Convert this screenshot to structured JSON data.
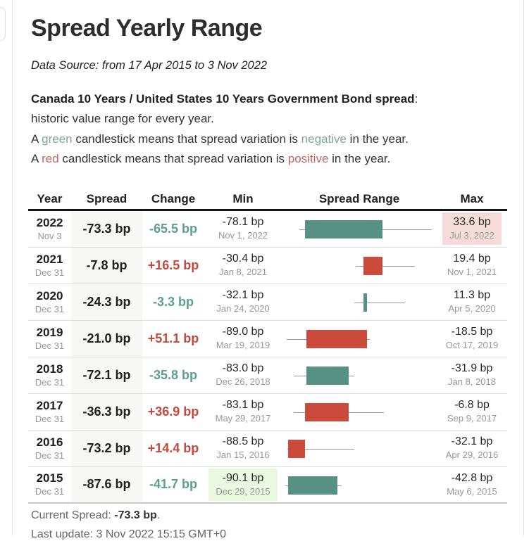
{
  "page": {
    "title": "Spread Yearly Range",
    "data_source": "Data Source: from 17 Apr 2015 to 3 Nov 2022"
  },
  "description": {
    "title_bold": "Canada 10 Years / United States 10 Years Government Bond spread",
    "title_colon": ":",
    "subtitle": "historic value range for every year.",
    "negative": [
      "A ",
      "green",
      " candlestick means that spread variation is ",
      "negative",
      " in the year."
    ],
    "positive": [
      "A ",
      "red",
      " candlestick means that spread variation is ",
      "positive",
      " in the year."
    ]
  },
  "table": {
    "headers": [
      "Year",
      "Spread",
      "Change",
      "Min",
      "Spread Range",
      "Max"
    ],
    "rows": [
      {
        "year": "2022",
        "date": "Nov 3",
        "spread": "-73.3 bp",
        "change": "-65.5 bp",
        "change_color": "green",
        "min_value": "-78.1 bp",
        "min_date": "Nov 1, 2022",
        "min_highlight": false,
        "max_value": "33.6 bp",
        "max_date": "Jul 3, 2022",
        "max_highlight": true,
        "candle": {
          "low": -78.1,
          "high": 33.6,
          "open": -7.8,
          "close": -73.3,
          "color": "green"
        }
      },
      {
        "year": "2021",
        "date": "Dec 31",
        "spread": "-7.8 bp",
        "change": "+16.5 bp",
        "change_color": "red",
        "min_value": "-30.4 bp",
        "min_date": "Jan 8, 2021",
        "min_highlight": false,
        "max_value": "19.4 bp",
        "max_date": "Nov 1, 2021",
        "max_highlight": false,
        "candle": {
          "low": -30.4,
          "high": 19.4,
          "open": -24.3,
          "close": -7.8,
          "color": "red"
        }
      },
      {
        "year": "2020",
        "date": "Dec 31",
        "spread": "-24.3 bp",
        "change": "-3.3 bp",
        "change_color": "green",
        "min_value": "-32.1 bp",
        "min_date": "Jan 24, 2020",
        "min_highlight": false,
        "max_value": "11.3 bp",
        "max_date": "Apr 5, 2020",
        "max_highlight": false,
        "candle": {
          "low": -32.1,
          "high": 11.3,
          "open": -21.0,
          "close": -24.3,
          "color": "green"
        }
      },
      {
        "year": "2019",
        "date": "Dec 31",
        "spread": "-21.0 bp",
        "change": "+51.1 bp",
        "change_color": "red",
        "min_value": "-89.0 bp",
        "min_date": "Mar 19, 2019",
        "min_highlight": false,
        "max_value": "-18.5 bp",
        "max_date": "Oct 17, 2019",
        "max_highlight": false,
        "candle": {
          "low": -89.0,
          "high": -18.5,
          "open": -72.1,
          "close": -21.0,
          "color": "red"
        }
      },
      {
        "year": "2018",
        "date": "Dec 31",
        "spread": "-72.1 bp",
        "change": "-35.8 bp",
        "change_color": "green",
        "min_value": "-83.0 bp",
        "min_date": "Dec 26, 2018",
        "min_highlight": false,
        "max_value": "-31.9 bp",
        "max_date": "Jan 8, 2018",
        "max_highlight": false,
        "candle": {
          "low": -83.0,
          "high": -31.9,
          "open": -36.3,
          "close": -72.1,
          "color": "green"
        }
      },
      {
        "year": "2017",
        "date": "Dec 31",
        "spread": "-36.3 bp",
        "change": "+36.9 bp",
        "change_color": "red",
        "min_value": "-83.1 bp",
        "min_date": "May 29, 2017",
        "min_highlight": false,
        "max_value": "-6.8 bp",
        "max_date": "Sep 9, 2017",
        "max_highlight": false,
        "candle": {
          "low": -83.1,
          "high": -6.8,
          "open": -73.2,
          "close": -36.3,
          "color": "red"
        }
      },
      {
        "year": "2016",
        "date": "Dec 31",
        "spread": "-73.2 bp",
        "change": "+14.4 bp",
        "change_color": "red",
        "min_value": "-88.5 bp",
        "min_date": "Jan 15, 2016",
        "min_highlight": false,
        "max_value": "-32.1 bp",
        "max_date": "Apr 29, 2016",
        "max_highlight": false,
        "candle": {
          "low": -88.5,
          "high": -32.1,
          "open": -87.6,
          "close": -73.2,
          "color": "red"
        }
      },
      {
        "year": "2015",
        "date": "Dec 31",
        "spread": "-87.6 bp",
        "change": "-41.7 bp",
        "change_color": "green",
        "min_value": "-90.1 bp",
        "min_date": "Dec 29, 2015",
        "min_highlight": true,
        "max_value": "-42.8 bp",
        "max_date": "May 6, 2015",
        "max_highlight": false,
        "candle": {
          "low": -90.1,
          "high": -42.8,
          "open": -45.9,
          "close": -87.6,
          "color": "green"
        }
      }
    ]
  },
  "footer": {
    "current_spread_label": "Current Spread: ",
    "current_spread_value": "-73.3 bp",
    "period": ".",
    "last_update": "Last update: 3 Nov 2022 15:15 GMT+0"
  },
  "chart_data": {
    "type": "candlestick-range",
    "title": "Spread Yearly Range",
    "unit": "bp",
    "axis_min": -90.1,
    "axis_max": 33.6,
    "series": [
      {
        "year": "2022",
        "low": -78.1,
        "high": 33.6,
        "open": -7.8,
        "close": -73.3,
        "direction": "negative"
      },
      {
        "year": "2021",
        "low": -30.4,
        "high": 19.4,
        "open": -24.3,
        "close": -7.8,
        "direction": "positive"
      },
      {
        "year": "2020",
        "low": -32.1,
        "high": 11.3,
        "open": -21.0,
        "close": -24.3,
        "direction": "negative"
      },
      {
        "year": "2019",
        "low": -89.0,
        "high": -18.5,
        "open": -72.1,
        "close": -21.0,
        "direction": "positive"
      },
      {
        "year": "2018",
        "low": -83.0,
        "high": -31.9,
        "open": -36.3,
        "close": -72.1,
        "direction": "negative"
      },
      {
        "year": "2017",
        "low": -83.1,
        "high": -6.8,
        "open": -73.2,
        "close": -36.3,
        "direction": "positive"
      },
      {
        "year": "2016",
        "low": -88.5,
        "high": -32.1,
        "open": -87.6,
        "close": -73.2,
        "direction": "positive"
      },
      {
        "year": "2015",
        "low": -90.1,
        "high": -42.8,
        "open": -45.9,
        "close": -87.6,
        "direction": "negative"
      }
    ]
  },
  "colors": {
    "candle_green": "#579184",
    "candle_red": "#cb4a3b",
    "text_green": "#5c9f8f",
    "text_red": "#c6493d",
    "desc_green": "#7fa696",
    "desc_red": "#c5655e",
    "max_highlight_bg": "#f5dcd9",
    "min_highlight_bg": "#e9f8df",
    "spread_col_bg": "#f7f7f6",
    "whisker": "#9a9a9a"
  }
}
